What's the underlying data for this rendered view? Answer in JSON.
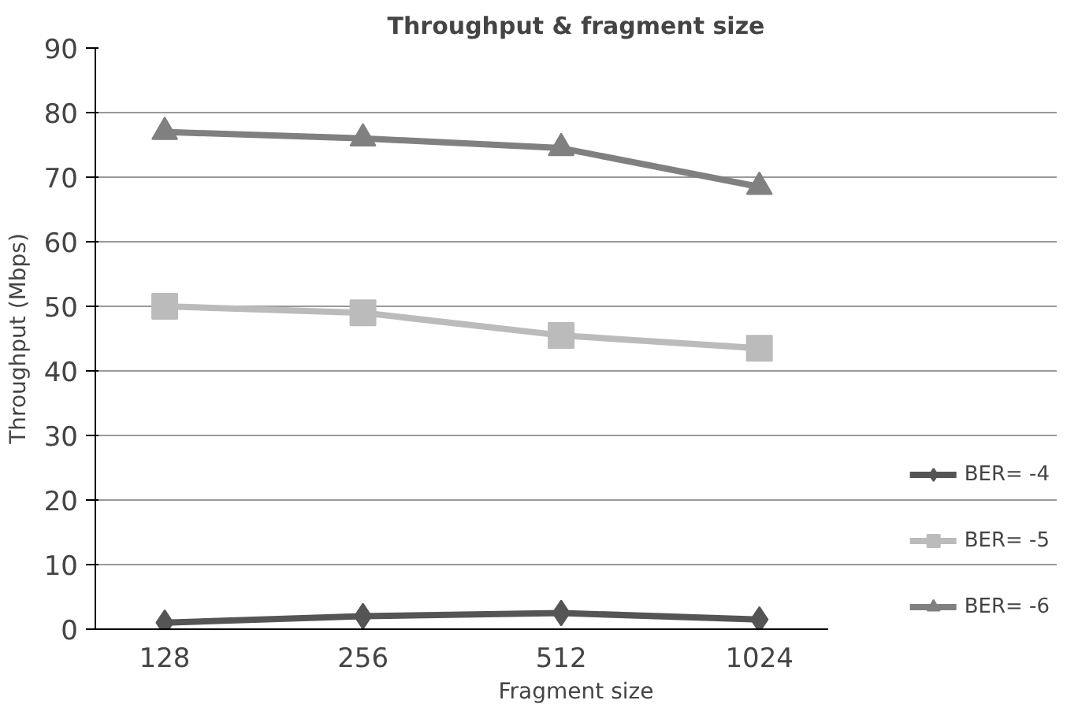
{
  "chart_data": {
    "type": "line",
    "title": "Throughput & fragment size",
    "xlabel": "Fragment size",
    "ylabel": "Throughput (Mbps)",
    "categories": [
      "128",
      "256",
      "512",
      "1024"
    ],
    "series": [
      {
        "name": "BER= -4",
        "color": "#555555",
        "marker": "diamond",
        "values": [
          1,
          2,
          2.5,
          1.5
        ]
      },
      {
        "name": "BER= -5",
        "color": "#bbbbbb",
        "marker": "square",
        "values": [
          50,
          49,
          45.5,
          43.5
        ]
      },
      {
        "name": "BER= -6",
        "color": "#808080",
        "marker": "triangle",
        "values": [
          77,
          76,
          74.5,
          68.5
        ]
      }
    ],
    "ylim": [
      0,
      90
    ],
    "yticks": [
      0,
      10,
      20,
      30,
      40,
      50,
      60,
      70,
      80,
      90
    ],
    "grid": "y",
    "legend": "right"
  }
}
